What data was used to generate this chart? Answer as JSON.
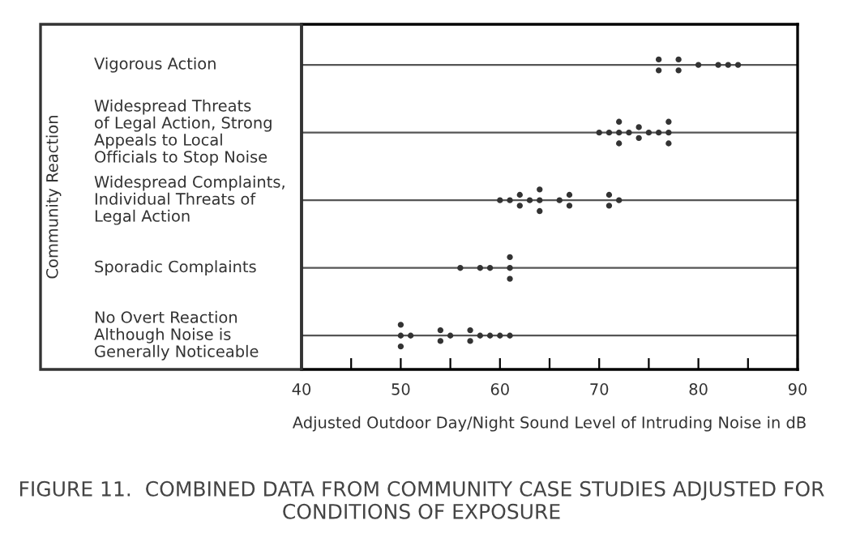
{
  "chart_data": {
    "type": "scatter",
    "orientation": "horizontal",
    "title": "FIGURE 11.  COMBINED DATA FROM COMMUNITY CASE STUDIES ADJUSTED FOR CONDITIONS OF EXPOSURE",
    "xlabel": "Adjusted Outdoor Day/Night Sound Level of Intruding Noise in dB",
    "annotations": [
      "Community Reaction"
    ],
    "categories": [
      "Vigorous Action",
      "Widespread Threats\nof Legal Action, Strong\nAppeals to Local\nOfficials to Stop Noise",
      "Widespread Complaints,\nIndividual Threats of\nLegal Action",
      "Sporadic Complaints",
      "No Overt Reaction\nAlthough Noise is\nGenerally Noticeable"
    ],
    "series": [
      {
        "color": "#333333",
        "values": [
          76,
          70,
          60,
          56,
          50
        ]
      },
      {
        "color": "#333333",
        "values": [
          76,
          71,
          61,
          58,
          50
        ]
      },
      {
        "color": "#333333",
        "values": [
          78,
          72,
          62,
          59,
          50
        ]
      },
      {
        "color": "#333333",
        "values": [
          78,
          72,
          62,
          61,
          51
        ]
      },
      {
        "color": "#333333",
        "values": [
          80,
          72,
          63,
          61,
          54
        ]
      },
      {
        "color": "#333333",
        "values": [
          82,
          73,
          64,
          61,
          54
        ]
      },
      {
        "color": "#333333",
        "values": [
          83,
          74,
          64,
          null,
          55
        ]
      },
      {
        "color": "#333333",
        "values": [
          84,
          74,
          64,
          null,
          57
        ]
      },
      {
        "color": "#333333",
        "values": [
          null,
          75,
          66,
          null,
          57
        ]
      },
      {
        "color": "#333333",
        "values": [
          null,
          76,
          67,
          null,
          58
        ]
      },
      {
        "color": "#333333",
        "values": [
          null,
          77,
          67,
          null,
          59
        ]
      },
      {
        "color": "#333333",
        "values": [
          null,
          77,
          71,
          null,
          60
        ]
      },
      {
        "color": "#333333",
        "values": [
          null,
          77,
          71,
          null,
          61
        ]
      },
      {
        "color": "#333333",
        "values": [
          null,
          null,
          72,
          null,
          null
        ]
      }
    ],
    "xlim": [
      40,
      90
    ],
    "xticks": [
      40,
      {
        "value": 45,
        "label": null
      },
      50,
      {
        "value": 55,
        "label": null
      },
      60,
      {
        "value": 65,
        "label": null
      },
      70,
      {
        "value": 75,
        "label": null
      },
      80,
      {
        "value": 85,
        "label": null
      },
      90
    ],
    "grid": "y",
    "marker": "circle"
  }
}
